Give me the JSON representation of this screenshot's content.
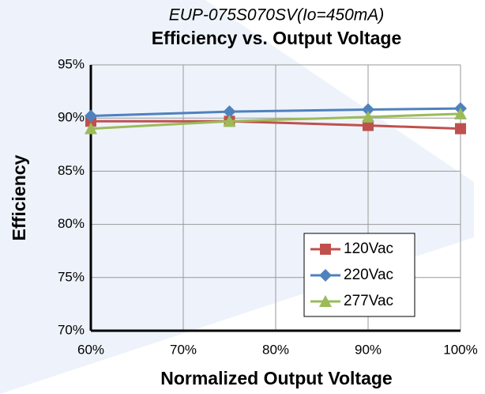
{
  "chart_data": {
    "type": "line",
    "title": "Efficiency vs. Output Voltage",
    "subtitle": "EUP-075S070SV(Io=450mA)",
    "x_label": "Normalized Output Voltage",
    "y_label": "Efficiency",
    "x": [
      60,
      75,
      90,
      100
    ],
    "series": [
      {
        "name": "120Vac",
        "color": "#c0504d",
        "marker": "square",
        "values": [
          89.7,
          89.7,
          89.3,
          89.0
        ]
      },
      {
        "name": "220Vac",
        "color": "#4f81bd",
        "marker": "diamond",
        "values": [
          90.2,
          90.6,
          90.8,
          90.9
        ]
      },
      {
        "name": "277Vac",
        "color": "#9bbb59",
        "marker": "triangle",
        "values": [
          89.0,
          89.7,
          90.1,
          90.4
        ]
      }
    ],
    "xlim": [
      60,
      100
    ],
    "xticks": [
      {
        "value": 60,
        "label": "60%"
      },
      {
        "value": 70,
        "label": "70%"
      },
      {
        "value": 80,
        "label": "80%"
      },
      {
        "value": 90,
        "label": "90%"
      },
      {
        "value": 100,
        "label": "100%"
      }
    ],
    "ylim": [
      70,
      95
    ],
    "yticks": [
      {
        "value": 70,
        "label": "70%"
      },
      {
        "value": 75,
        "label": "75%"
      },
      {
        "value": 80,
        "label": "80%"
      },
      {
        "value": 85,
        "label": "85%"
      },
      {
        "value": 90,
        "label": "90%"
      },
      {
        "value": 95,
        "label": "95%"
      }
    ],
    "grid": true,
    "legend": "lower right"
  }
}
